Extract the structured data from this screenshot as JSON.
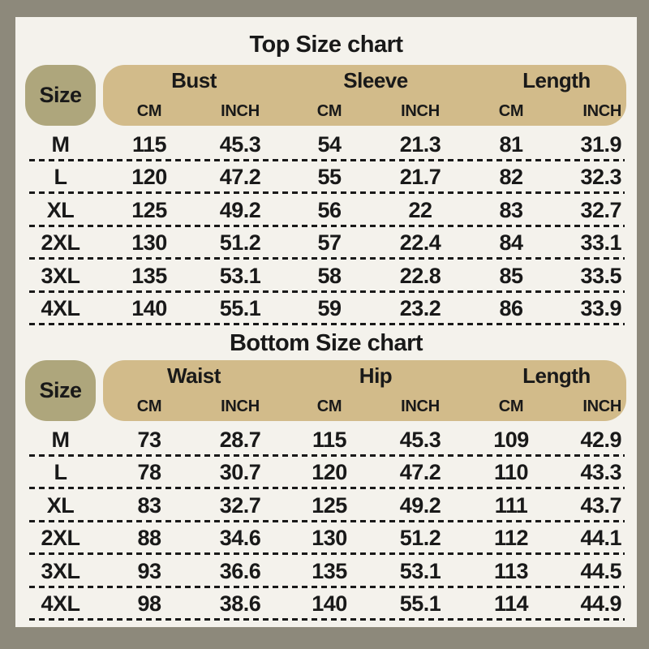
{
  "colors": {
    "frame": "#8d897b",
    "sheet_background": "#f4f2ec",
    "header_band": "#d2bb8a",
    "size_pill": "#aea67c",
    "text": "#191919"
  },
  "chart_data": [
    {
      "type": "table",
      "title": "Top Size chart",
      "row_header": "Size",
      "column_groups": [
        {
          "label": "Bust",
          "units": [
            "CM",
            "INCH"
          ]
        },
        {
          "label": "Sleeve",
          "units": [
            "CM",
            "INCH"
          ]
        },
        {
          "label": "Length",
          "units": [
            "CM",
            "INCH"
          ]
        }
      ],
      "rows": [
        {
          "size": "M",
          "values": [
            "115",
            "45.3",
            "54",
            "21.3",
            "81",
            "31.9"
          ]
        },
        {
          "size": "L",
          "values": [
            "120",
            "47.2",
            "55",
            "21.7",
            "82",
            "32.3"
          ]
        },
        {
          "size": "XL",
          "values": [
            "125",
            "49.2",
            "56",
            "22",
            "83",
            "32.7"
          ]
        },
        {
          "size": "2XL",
          "values": [
            "130",
            "51.2",
            "57",
            "22.4",
            "84",
            "33.1"
          ]
        },
        {
          "size": "3XL",
          "values": [
            "135",
            "53.1",
            "58",
            "22.8",
            "85",
            "33.5"
          ]
        },
        {
          "size": "4XL",
          "values": [
            "140",
            "55.1",
            "59",
            "23.2",
            "86",
            "33.9"
          ]
        }
      ]
    },
    {
      "type": "table",
      "title": "Bottom Size chart",
      "row_header": "Size",
      "column_groups": [
        {
          "label": "Waist",
          "units": [
            "CM",
            "INCH"
          ]
        },
        {
          "label": "Hip",
          "units": [
            "CM",
            "INCH"
          ]
        },
        {
          "label": "Length",
          "units": [
            "CM",
            "INCH"
          ]
        }
      ],
      "rows": [
        {
          "size": "M",
          "values": [
            "73",
            "28.7",
            "115",
            "45.3",
            "109",
            "42.9"
          ]
        },
        {
          "size": "L",
          "values": [
            "78",
            "30.7",
            "120",
            "47.2",
            "110",
            "43.3"
          ]
        },
        {
          "size": "XL",
          "values": [
            "83",
            "32.7",
            "125",
            "49.2",
            "111",
            "43.7"
          ]
        },
        {
          "size": "2XL",
          "values": [
            "88",
            "34.6",
            "130",
            "51.2",
            "112",
            "44.1"
          ]
        },
        {
          "size": "3XL",
          "values": [
            "93",
            "36.6",
            "135",
            "53.1",
            "113",
            "44.5"
          ]
        },
        {
          "size": "4XL",
          "values": [
            "98",
            "38.6",
            "140",
            "55.1",
            "114",
            "44.9"
          ]
        }
      ]
    }
  ]
}
